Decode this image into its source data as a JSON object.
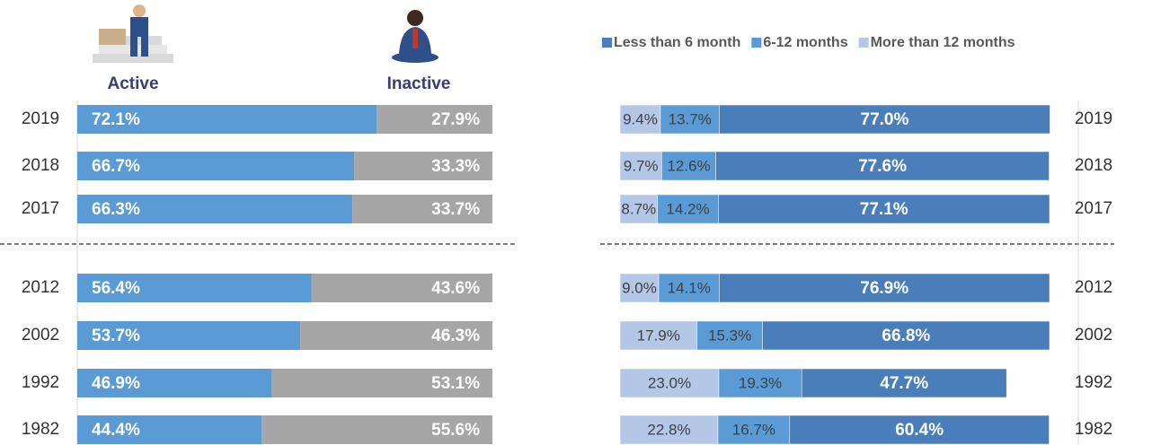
{
  "chart_data": [
    {
      "type": "bar",
      "orientation": "horizontal",
      "stacked": true,
      "categories": [
        "2019",
        "2018",
        "2017",
        "2012",
        "2002",
        "1992",
        "1982"
      ],
      "xlim": [
        0,
        100
      ],
      "series": [
        {
          "name": "Active",
          "color": "#5b9bd5",
          "values": [
            72.1,
            66.7,
            66.3,
            56.4,
            53.7,
            46.9,
            44.4
          ],
          "value_labels": [
            "72.1%",
            "66.7%",
            "66.3%",
            "56.4%",
            "53.7%",
            "46.9%",
            "44.4%"
          ]
        },
        {
          "name": "Inactive",
          "color": "#a6a6a6",
          "values": [
            27.9,
            33.3,
            33.7,
            43.6,
            46.3,
            53.1,
            55.6
          ],
          "value_labels": [
            "27.9%",
            "33.3%",
            "33.7%",
            "43.6%",
            "46.3%",
            "53.1%",
            "55.6%"
          ]
        }
      ]
    },
    {
      "type": "bar",
      "orientation": "horizontal",
      "stacked": true,
      "categories": [
        "2019",
        "2018",
        "2017",
        "2012",
        "2002",
        "1992",
        "1982"
      ],
      "xlim": [
        0,
        100
      ],
      "series": [
        {
          "name": "Less than 6 month",
          "color": "#4a7ebb",
          "values": [
            77.0,
            77.6,
            77.1,
            76.9,
            66.8,
            47.7,
            60.4
          ],
          "value_labels": [
            "77.0%",
            "77.6%",
            "77.1%",
            "76.9%",
            "66.8%",
            "47.7%",
            "60.4%"
          ]
        },
        {
          "name": "6-12 months",
          "color": "#5b9bd5",
          "values": [
            13.7,
            12.6,
            14.2,
            14.1,
            15.3,
            19.3,
            16.7
          ],
          "value_labels": [
            "13.7%",
            "12.6%",
            "14.2%",
            "14.1%",
            "15.3%",
            "19.3%",
            "16.7%"
          ]
        },
        {
          "name": "More than 12 months",
          "color": "#b4c7e7",
          "values": [
            9.4,
            9.7,
            8.7,
            9.0,
            17.9,
            23.0,
            22.8
          ],
          "value_labels": [
            "9.4%",
            "9.7%",
            "8.7%",
            "9.0%",
            "17.9%",
            "23.0%",
            "22.8%"
          ]
        }
      ]
    }
  ]
}
